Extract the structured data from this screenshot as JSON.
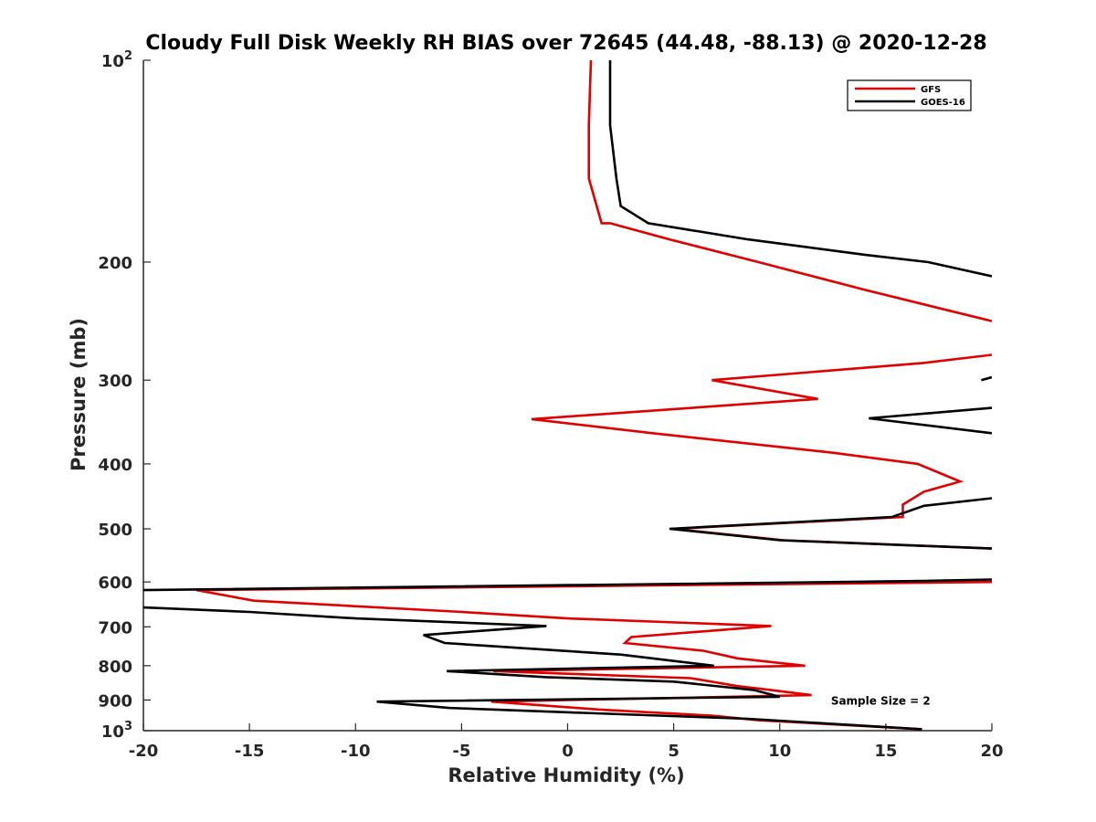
{
  "chart_data": {
    "type": "line",
    "title": "Cloudy Full Disk Weekly RH BIAS over 72645 (44.48, -88.13) @ 2020-12-28",
    "xlabel": "Relative Humidity (%)",
    "ylabel": "Pressure (mb)",
    "xlim": [
      -20,
      20
    ],
    "ylim": [
      100,
      1000
    ],
    "y_scale": "log",
    "y_reversed": true,
    "grid": false,
    "legend_position": "top-right",
    "x_ticks": [
      "-20",
      "-15",
      "-10",
      "-5",
      "0",
      "5",
      "10",
      "15",
      "20"
    ],
    "x_tick_values": [
      -20,
      -15,
      -10,
      -5,
      0,
      5,
      10,
      15,
      20
    ],
    "y_ticks": [
      {
        "value": 100,
        "base": "10",
        "exp": "2"
      },
      {
        "value": 200,
        "base": "200",
        "exp": ""
      },
      {
        "value": 300,
        "base": "300",
        "exp": ""
      },
      {
        "value": 400,
        "base": "400",
        "exp": ""
      },
      {
        "value": 500,
        "base": "500",
        "exp": ""
      },
      {
        "value": 600,
        "base": "600",
        "exp": ""
      },
      {
        "value": 700,
        "base": "700",
        "exp": ""
      },
      {
        "value": 800,
        "base": "800",
        "exp": ""
      },
      {
        "value": 900,
        "base": "900",
        "exp": ""
      },
      {
        "value": 1000,
        "base": "10",
        "exp": "3"
      }
    ],
    "series": [
      {
        "name": "GFS",
        "color": "#e00000",
        "points": [
          [
            1.1,
            100
          ],
          [
            1.0,
            125
          ],
          [
            1.0,
            150
          ],
          [
            1.6,
            175
          ],
          [
            2.0,
            175
          ],
          [
            4.8,
            185
          ],
          [
            9.0,
            200
          ],
          [
            14.0,
            220
          ],
          [
            20.0,
            245
          ],
          [
            null,
            null
          ],
          [
            20.0,
            275
          ],
          [
            16.7,
            283
          ],
          [
            6.8,
            300
          ],
          [
            11.8,
            320
          ],
          [
            -1.7,
            343
          ],
          [
            4.0,
            360
          ],
          [
            12.5,
            385
          ],
          [
            16.5,
            400
          ],
          [
            18.5,
            425
          ],
          [
            16.8,
            440
          ],
          [
            15.8,
            460
          ],
          [
            15.8,
            480
          ],
          [
            5.0,
            500
          ],
          [
            10.2,
            520
          ],
          [
            20.0,
            535
          ],
          [
            null,
            null
          ],
          [
            20.0,
            600
          ],
          [
            -17.5,
            617
          ],
          [
            -14.8,
            640
          ],
          [
            -5.0,
            665
          ],
          [
            0.0,
            680
          ],
          [
            9.6,
            698
          ],
          [
            3.0,
            725
          ],
          [
            2.7,
            740
          ],
          [
            6.4,
            760
          ],
          [
            8.0,
            780
          ],
          [
            11.2,
            800
          ],
          [
            -3.5,
            815
          ],
          [
            5.8,
            835
          ],
          [
            8.0,
            858
          ],
          [
            9.6,
            870
          ],
          [
            11.5,
            885
          ],
          [
            -3.6,
            905
          ],
          [
            1.5,
            930
          ],
          [
            6.8,
            950
          ],
          [
            9.0,
            965
          ],
          [
            16.7,
            995
          ]
        ]
      },
      {
        "name": "GOES-16",
        "color": "#000000",
        "points": [
          [
            2.0,
            100
          ],
          [
            2.0,
            125
          ],
          [
            2.3,
            150
          ],
          [
            2.5,
            165
          ],
          [
            3.8,
            175
          ],
          [
            8.5,
            185
          ],
          [
            14.0,
            195
          ],
          [
            17.0,
            200
          ],
          [
            20.0,
            210
          ],
          [
            null,
            null
          ],
          [
            19.5,
            300
          ],
          [
            20.0,
            297
          ],
          [
            null,
            null
          ],
          [
            20.0,
            330
          ],
          [
            14.2,
            342
          ],
          [
            20.0,
            360
          ],
          [
            null,
            null
          ],
          [
            20.0,
            450
          ],
          [
            16.8,
            462
          ],
          [
            15.3,
            480
          ],
          [
            4.8,
            500
          ],
          [
            10.0,
            520
          ],
          [
            20.0,
            535
          ],
          [
            null,
            null
          ],
          [
            20.0,
            595
          ],
          [
            16.7,
            598
          ],
          [
            -20.0,
            617
          ],
          [
            null,
            null
          ],
          [
            -20.0,
            655
          ],
          [
            -15.0,
            665
          ],
          [
            -10.0,
            680
          ],
          [
            -1.0,
            698
          ],
          [
            -6.8,
            720
          ],
          [
            -5.8,
            740
          ],
          [
            2.5,
            770
          ],
          [
            6.9,
            800
          ],
          [
            -5.7,
            815
          ],
          [
            -1.0,
            832
          ],
          [
            5.0,
            845
          ],
          [
            8.8,
            870
          ],
          [
            10.0,
            890
          ],
          [
            -9.0,
            905
          ],
          [
            -5.6,
            925
          ],
          [
            2.5,
            945
          ],
          [
            8.5,
            960
          ],
          [
            16.7,
            995
          ]
        ]
      }
    ],
    "annotations": [
      {
        "text": "Sample Size = 2",
        "x": 12.5,
        "y": 900
      }
    ]
  }
}
